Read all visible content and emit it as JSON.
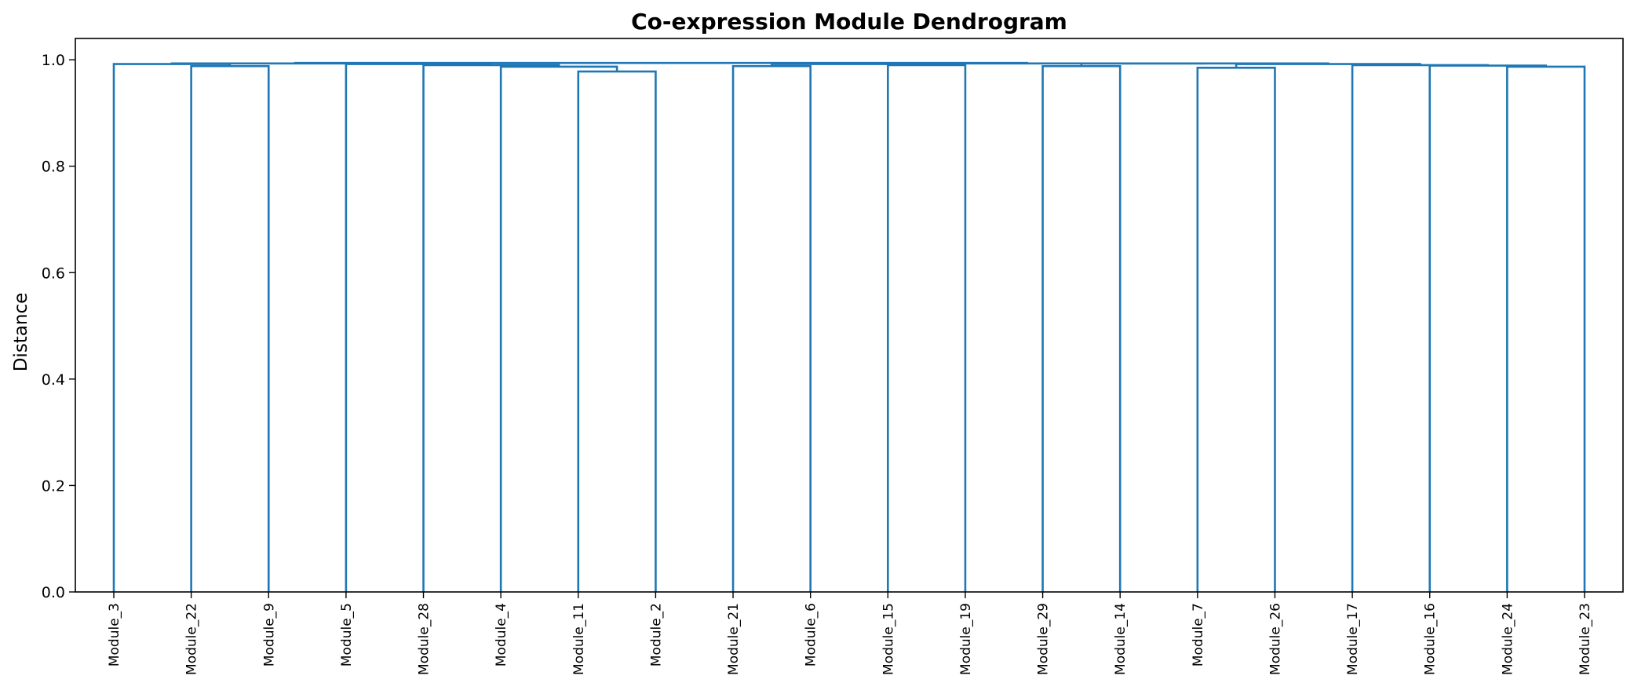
{
  "chart_data": {
    "type": "dendrogram",
    "title": "Co-expression Module Dendrogram",
    "xlabel": "",
    "ylabel": "Distance",
    "ylim": [
      0,
      1.04
    ],
    "yticks": [
      "0.0",
      "0.2",
      "0.4",
      "0.6",
      "0.8",
      "1.0"
    ],
    "link_color": "#1f77b4",
    "grid": false,
    "leaves": [
      "Module_3",
      "Module_22",
      "Module_9",
      "Module_5",
      "Module_28",
      "Module_4",
      "Module_11",
      "Module_2",
      "Module_21",
      "Module_6",
      "Module_15",
      "Module_19",
      "Module_29",
      "Module_14",
      "Module_7",
      "Module_26",
      "Module_17",
      "Module_16",
      "Module_24",
      "Module_23"
    ],
    "merges": [
      {
        "left": "Module_22",
        "right": "Module_9",
        "height": 0.988
      },
      {
        "left": "Module_3",
        "right": 0,
        "height": 0.992
      },
      {
        "left": "Module_11",
        "right": "Module_2",
        "height": 0.978
      },
      {
        "left": "Module_4",
        "right": 2,
        "height": 0.987
      },
      {
        "left": "Module_28",
        "right": 3,
        "height": 0.99
      },
      {
        "left": "Module_5",
        "right": 4,
        "height": 0.992
      },
      {
        "left": 1,
        "right": 5,
        "height": 0.993
      },
      {
        "left": "Module_21",
        "right": "Module_6",
        "height": 0.988
      },
      {
        "left": "Module_15",
        "right": "Module_19",
        "height": 0.99
      },
      {
        "left": 7,
        "right": 8,
        "height": 0.992
      },
      {
        "left": "Module_29",
        "right": "Module_14",
        "height": 0.988
      },
      {
        "left": "Module_7",
        "right": "Module_26",
        "height": 0.985
      },
      {
        "left": "Module_24",
        "right": "Module_23",
        "height": 0.987
      },
      {
        "left": "Module_16",
        "right": 12,
        "height": 0.989
      },
      {
        "left": "Module_17",
        "right": 13,
        "height": 0.99
      },
      {
        "left": 11,
        "right": 14,
        "height": 0.992
      },
      {
        "left": 10,
        "right": 15,
        "height": 0.993
      },
      {
        "left": 9,
        "right": 16,
        "height": 0.993
      },
      {
        "left": 6,
        "right": 17,
        "height": 0.994
      }
    ]
  }
}
